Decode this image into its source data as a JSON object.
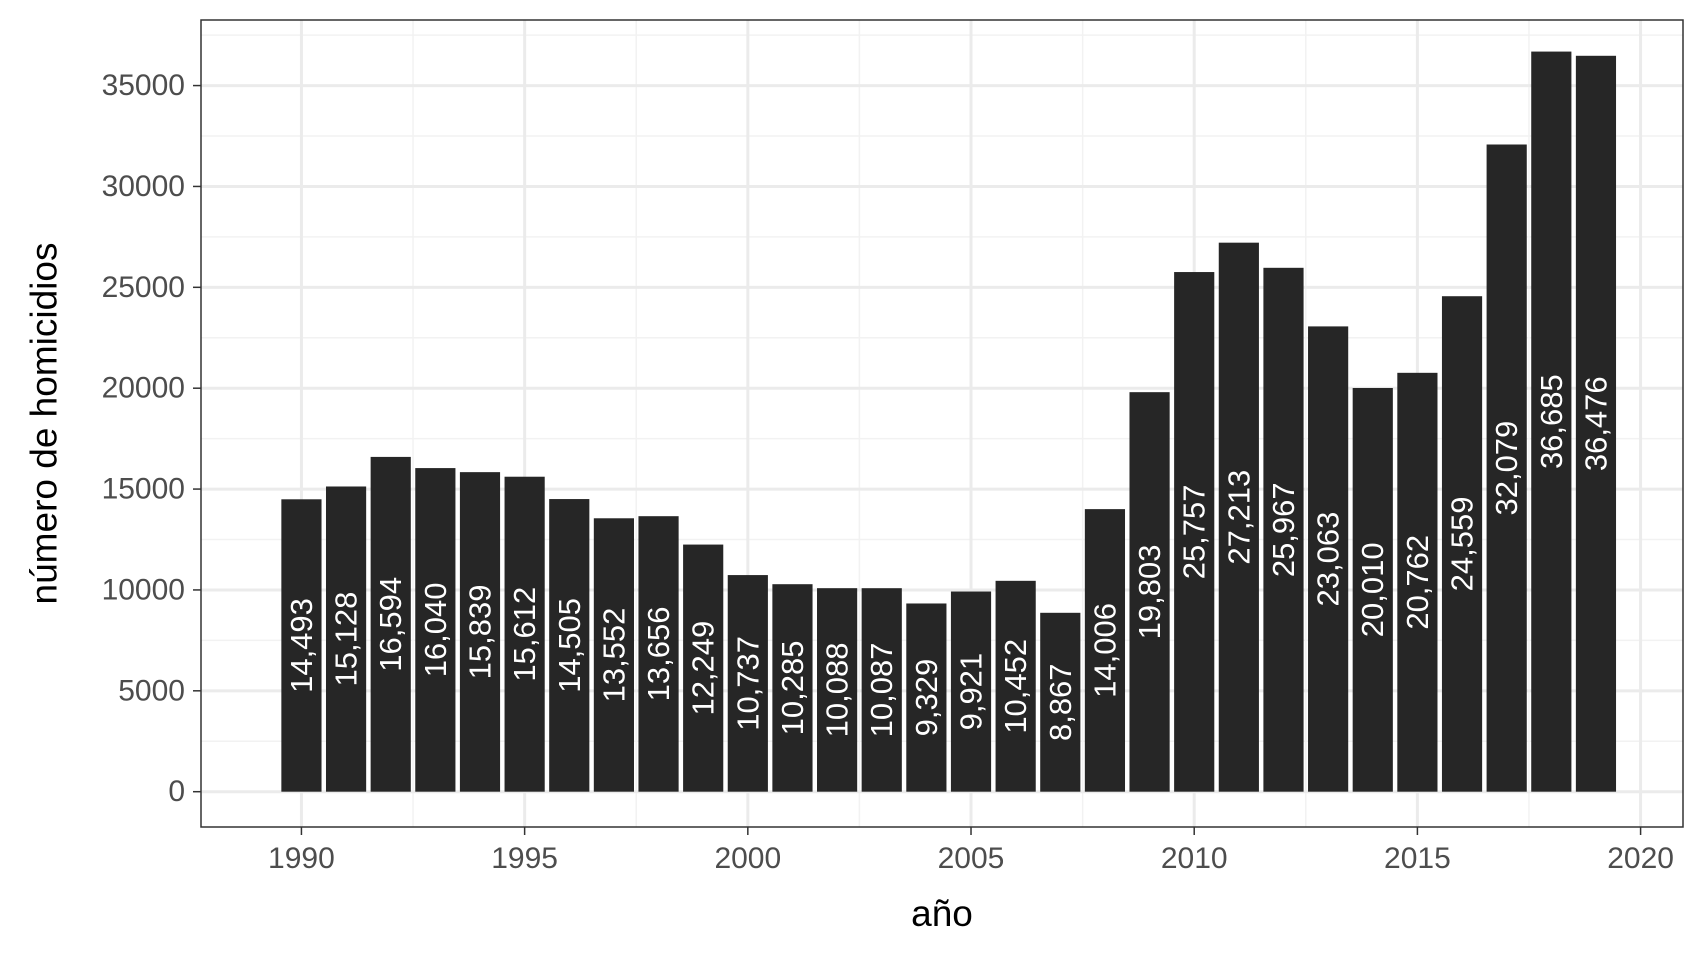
{
  "chart_data": {
    "type": "bar",
    "title": "",
    "xlabel": "año",
    "ylabel": "número de homicidios",
    "x": [
      1990,
      1991,
      1992,
      1993,
      1994,
      1995,
      1996,
      1997,
      1998,
      1999,
      2000,
      2001,
      2002,
      2003,
      2004,
      2005,
      2006,
      2007,
      2008,
      2009,
      2010,
      2011,
      2012,
      2013,
      2014,
      2015,
      2016,
      2017,
      2018,
      2019
    ],
    "values": [
      14493,
      15128,
      16594,
      16040,
      15839,
      15612,
      14505,
      13552,
      13656,
      12249,
      10737,
      10285,
      10088,
      10087,
      9329,
      9921,
      10452,
      8867,
      14006,
      19803,
      25757,
      27213,
      25967,
      23063,
      20010,
      20762,
      24559,
      32079,
      36685,
      36476
    ],
    "value_labels": [
      "14,493",
      "15,128",
      "16,594",
      "16,040",
      "15,839",
      "15,612",
      "14,505",
      "13,552",
      "13,656",
      "12,249",
      "10,737",
      "10,285",
      "10,088",
      "10,087",
      "9,329",
      "9,921",
      "10,452",
      "8,867",
      "14,006",
      "19,803",
      "25,757",
      "27,213",
      "25,967",
      "23,063",
      "20,010",
      "20,762",
      "24,559",
      "32,079",
      "36,685",
      "36,476"
    ],
    "xlim": [
      1987.75,
      2020.95
    ],
    "ylim": [
      -1750,
      38250
    ],
    "x_ticks": [
      1990,
      1995,
      2000,
      2005,
      2010,
      2015,
      2020
    ],
    "x_tick_labels": [
      "1990",
      "1995",
      "2000",
      "2005",
      "2010",
      "2015",
      "2020"
    ],
    "y_ticks": [
      0,
      5000,
      10000,
      15000,
      20000,
      25000,
      30000,
      35000
    ],
    "y_tick_labels": [
      "0",
      "5000",
      "10000",
      "15000",
      "20000",
      "25000",
      "30000",
      "35000"
    ],
    "grid": true,
    "legend": "none",
    "colors": {
      "bar": "#262626",
      "label": "#ffffff",
      "grid_major": "#ebebeb",
      "grid_minor": "#f2f2f2",
      "panel_border": "#333333",
      "background": "#ffffff"
    }
  }
}
